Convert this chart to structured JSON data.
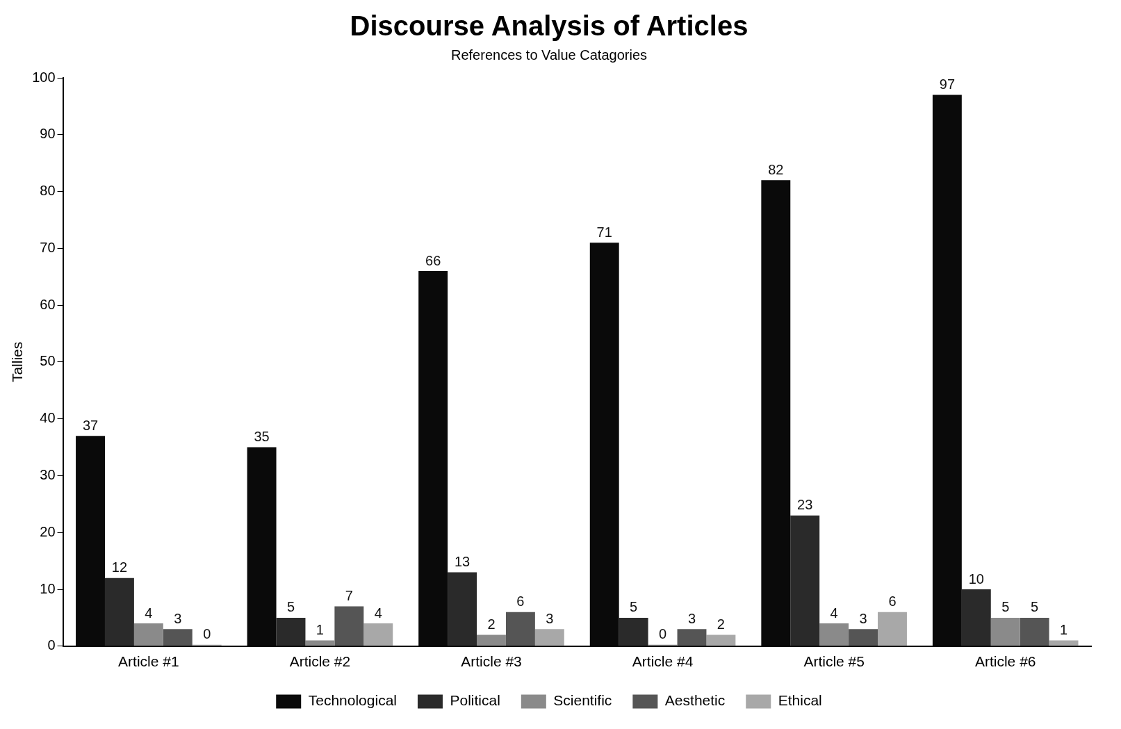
{
  "chart_data": {
    "type": "bar",
    "title": "Discourse Analysis of Articles",
    "subtitle": "References to Value Catagories",
    "ylabel": "Tallies",
    "categories": [
      "Article #1",
      "Article #2",
      "Article #3",
      "Article #4",
      "Article #5",
      "Article #6"
    ],
    "series": [
      {
        "name": "Technological",
        "color": "#0a0a0a",
        "values": [
          37,
          35,
          66,
          71,
          82,
          97
        ]
      },
      {
        "name": "Political",
        "color": "#2a2a2a",
        "values": [
          12,
          5,
          13,
          5,
          23,
          10
        ]
      },
      {
        "name": "Scientific",
        "color": "#8a8a8a",
        "values": [
          4,
          1,
          2,
          0,
          4,
          5
        ]
      },
      {
        "name": "Aesthetic",
        "color": "#555555",
        "values": [
          3,
          7,
          6,
          3,
          3,
          5
        ]
      },
      {
        "name": "Ethical",
        "color": "#a8a8a8",
        "values": [
          0,
          4,
          3,
          2,
          6,
          1
        ]
      }
    ],
    "ylim": [
      0,
      100
    ],
    "yticks": [
      0,
      10,
      20,
      30,
      40,
      50,
      60,
      70,
      80,
      90,
      100
    ],
    "grid": false,
    "legend": "bottom",
    "data_labels": true
  }
}
